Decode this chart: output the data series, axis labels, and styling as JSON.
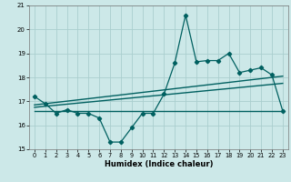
{
  "xlabel": "Humidex (Indice chaleur)",
  "bg_color": "#cce8e8",
  "grid_color": "#aacece",
  "line_color": "#006060",
  "xlim": [
    -0.5,
    23.5
  ],
  "ylim": [
    15,
    21
  ],
  "yticks": [
    15,
    16,
    17,
    18,
    19,
    20,
    21
  ],
  "xticks": [
    0,
    1,
    2,
    3,
    4,
    5,
    6,
    7,
    8,
    9,
    10,
    11,
    12,
    13,
    14,
    15,
    16,
    17,
    18,
    19,
    20,
    21,
    22,
    23
  ],
  "main_line_x": [
    0,
    1,
    2,
    3,
    4,
    5,
    6,
    7,
    8,
    9,
    10,
    11,
    12,
    13,
    14,
    15,
    16,
    17,
    18,
    19,
    20,
    21,
    22,
    23
  ],
  "main_line_y": [
    17.2,
    16.9,
    16.5,
    16.65,
    16.5,
    16.5,
    16.3,
    15.3,
    15.3,
    15.9,
    16.5,
    16.5,
    17.3,
    18.6,
    20.6,
    18.65,
    18.7,
    18.7,
    19.0,
    18.2,
    18.3,
    18.4,
    18.1,
    16.6
  ],
  "flat_line_x": [
    0,
    23
  ],
  "flat_line_y": [
    16.6,
    16.6
  ],
  "trend_line1_x": [
    0,
    23
  ],
  "trend_line1_y": [
    16.85,
    18.05
  ],
  "trend_line2_x": [
    0,
    23
  ],
  "trend_line2_y": [
    16.75,
    17.75
  ]
}
